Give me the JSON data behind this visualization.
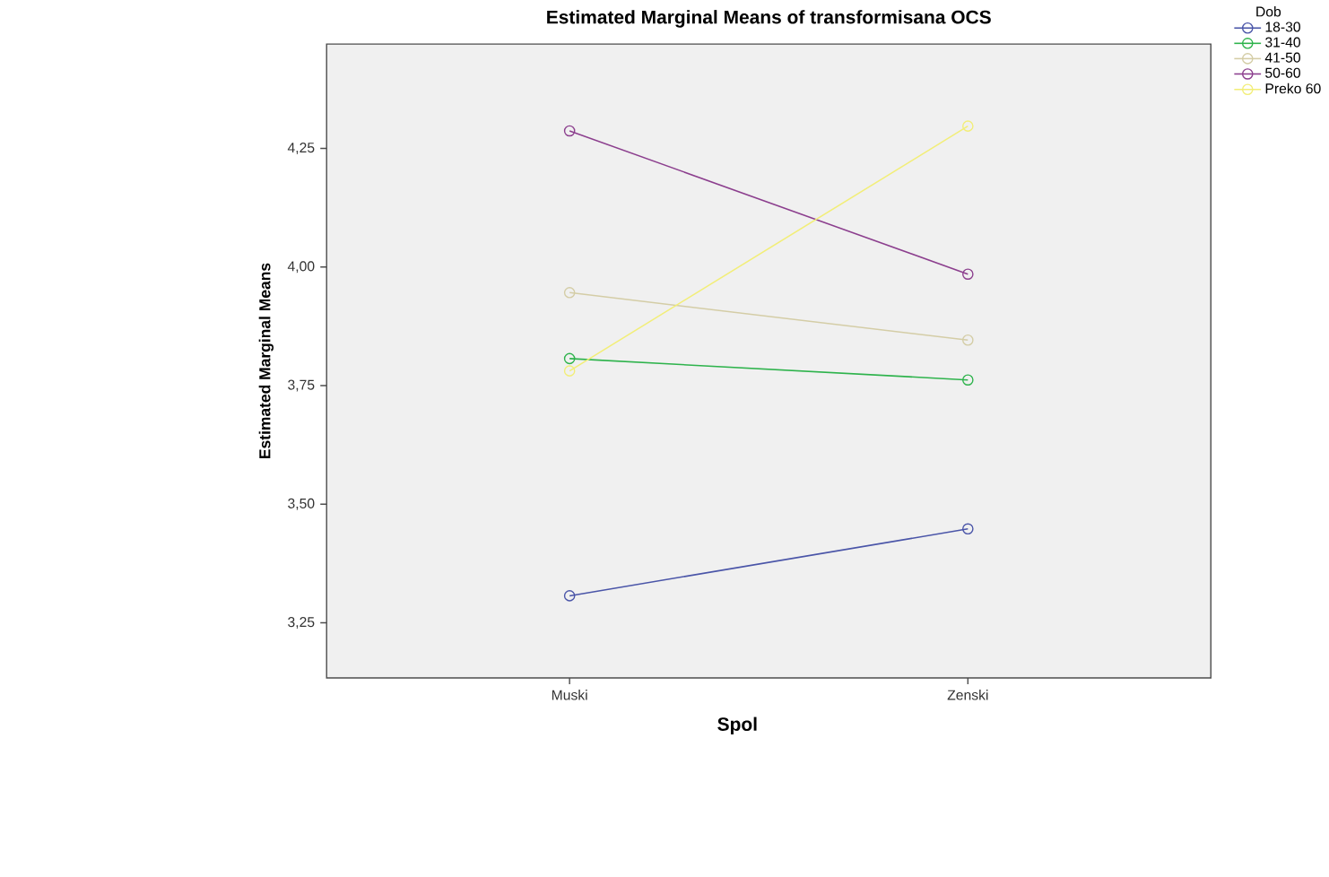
{
  "chart_data": {
    "type": "line",
    "title": "Estimated Marginal Means of transformisana OCS",
    "xlabel": "Spol",
    "ylabel": "Estimated Marginal Means",
    "legend_title": "Dob",
    "categories": [
      "Muski",
      "Zenski"
    ],
    "series": [
      {
        "name": "18-30",
        "color": "#4a55a8",
        "values": [
          3.307,
          3.448
        ]
      },
      {
        "name": "31-40",
        "color": "#2eb34c",
        "values": [
          3.807,
          3.762
        ]
      },
      {
        "name": "41-50",
        "color": "#d4cda6",
        "values": [
          3.946,
          3.846
        ]
      },
      {
        "name": "50-60",
        "color": "#8c3f8e",
        "values": [
          4.287,
          3.985
        ]
      },
      {
        "name": "Preko 60",
        "color": "#f2ee78",
        "values": [
          3.781,
          4.297
        ]
      }
    ],
    "ylim": [
      3.134,
      4.47
    ],
    "yticks": [
      {
        "value": 3.25,
        "label": "3,25"
      },
      {
        "value": 3.5,
        "label": "3,50"
      },
      {
        "value": 3.75,
        "label": "3,75"
      },
      {
        "value": 4.0,
        "label": "4,00"
      },
      {
        "value": 4.25,
        "label": "4,25"
      }
    ],
    "legend": "top right",
    "marker": "circle",
    "grid": false
  }
}
